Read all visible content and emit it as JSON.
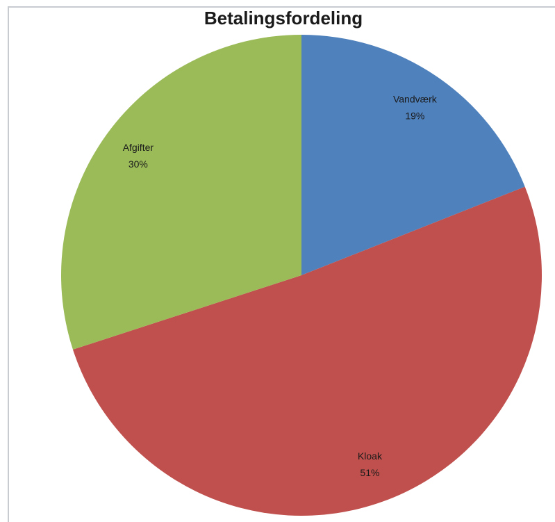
{
  "chart_data": {
    "type": "pie",
    "title": "Betalingsfordeling",
    "categories": [
      "Vandværk",
      "Kloak",
      "Afgifter"
    ],
    "values": [
      19,
      51,
      30
    ],
    "value_labels": [
      "19%",
      "51%",
      "30%"
    ],
    "colors": [
      "#4f81bd",
      "#c0504d",
      "#9bbb59"
    ]
  }
}
